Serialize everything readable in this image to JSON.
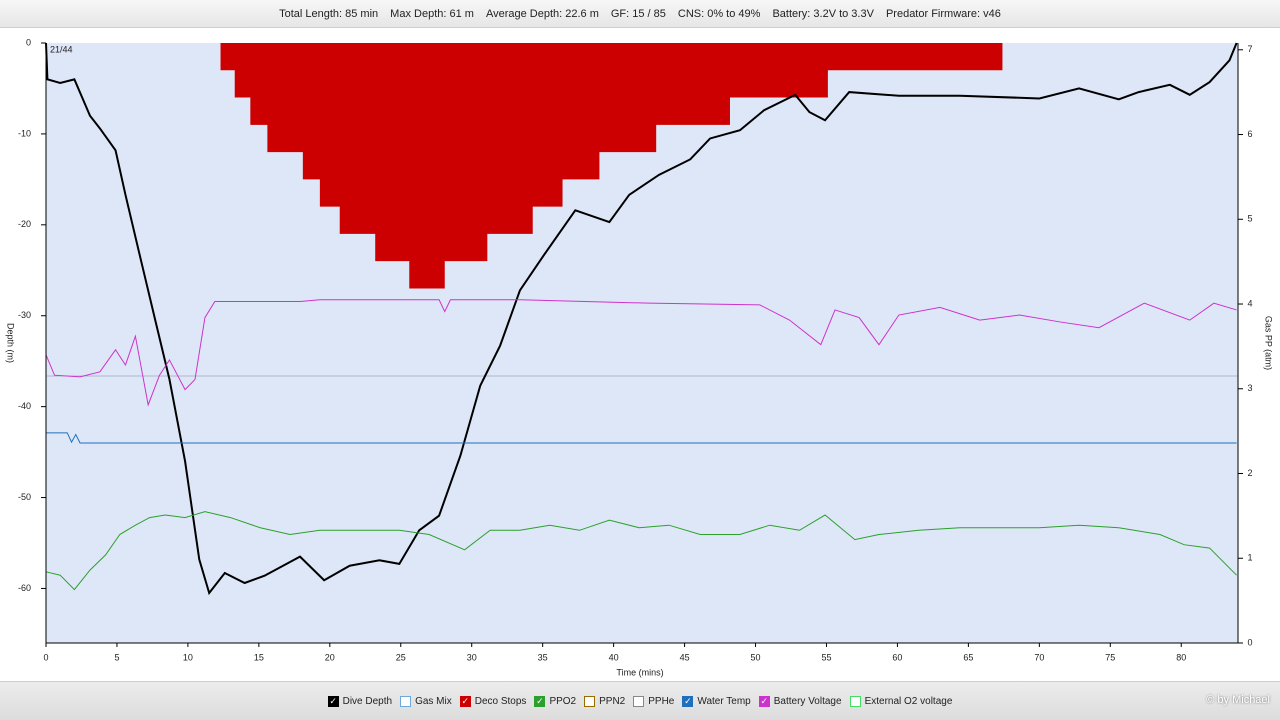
{
  "header": {
    "items": [
      "Total Length: 85 min",
      "Max Depth: 61 m",
      "Average Depth: 22.6 m",
      "GF: 15 / 85",
      "CNS: 0% to 49%",
      "Battery: 3.2V to 3.3V",
      "Predator Firmware: v46"
    ]
  },
  "chart_data": {
    "type": "line",
    "annotation": "21/44",
    "xlabel": "Time (mins)",
    "ylabel": "Depth (m)",
    "y2label": "Gas PP (atm)",
    "xlim": [
      0,
      84
    ],
    "xticks": [
      0,
      5,
      10,
      15,
      20,
      25,
      30,
      35,
      40,
      45,
      50,
      55,
      60,
      65,
      70,
      75,
      80
    ],
    "ylim": [
      -66,
      0
    ],
    "yticks": [
      0,
      -10,
      -20,
      -30,
      -40,
      -50,
      -60
    ],
    "y2lim": [
      0,
      7.08
    ],
    "y2ticks": [
      0,
      1,
      2,
      3,
      4,
      5,
      6,
      7
    ],
    "y2_reference": 3.15,
    "series": [
      {
        "name": "Dive Depth",
        "color": "#000000",
        "checked": true,
        "type": "line",
        "axis": "y",
        "x": [
          0,
          0.1,
          1,
          2,
          3.1,
          3.8,
          4.9,
          5.6,
          6.6,
          7.7,
          8.7,
          9.8,
          10.8,
          11.5,
          12.6,
          14,
          15.4,
          17.9,
          19.6,
          21.4,
          23.5,
          24.9,
          26.3,
          27.7,
          29.2,
          30.6,
          32,
          33.4,
          35.1,
          37.3,
          39.7,
          41.1,
          43.2,
          45.4,
          46.8,
          48.9,
          50.6,
          52.8,
          53.8,
          54.9,
          56.6,
          60.1,
          64.4,
          70,
          72.8,
          75.6,
          77,
          79.2,
          80.6,
          82,
          83.4,
          83.9
        ],
        "values": [
          0,
          -4,
          -4.4,
          -4,
          -8,
          -9.4,
          -11.8,
          -16.7,
          -23.3,
          -30.5,
          -37,
          -46,
          -56.8,
          -60.5,
          -58.3,
          -59.4,
          -58.6,
          -56.5,
          -59.1,
          -57.5,
          -56.9,
          -57.3,
          -53.6,
          -52,
          -45.4,
          -37.7,
          -33.3,
          -27.2,
          -23.3,
          -18.4,
          -19.7,
          -16.7,
          -14.5,
          -12.8,
          -10.5,
          -9.6,
          -7.4,
          -5.7,
          -7.6,
          -8.5,
          -5.4,
          -5.8,
          -5.8,
          -6.1,
          -5,
          -6.2,
          -5.4,
          -4.6,
          -5.7,
          -4.3,
          -1.9,
          0
        ]
      },
      {
        "name": "Gas Mix",
        "color": "#6fa8dc",
        "checked": false
      },
      {
        "name": "Deco Stops",
        "color": "#cc0000",
        "checked": true,
        "type": "area",
        "axis": "y",
        "x": [
          12.3,
          13.3,
          14.4,
          15.6,
          18.1,
          19.3,
          20.7,
          23.2,
          25.6,
          28.1,
          31.1,
          34.3,
          36.4,
          39,
          43,
          48.2,
          55.1,
          67.4
        ],
        "values": [
          -3,
          -6,
          -9,
          -12,
          -15,
          -18,
          -21,
          -24,
          -27,
          -24,
          -21,
          -18,
          -15,
          -12,
          -9,
          -6,
          -3,
          0
        ]
      },
      {
        "name": "PPO2",
        "color": "#2ca02c",
        "checked": true,
        "type": "line",
        "axis": "y2",
        "x": [
          0,
          1,
          2,
          3.1,
          4.2,
          5.2,
          6.3,
          7.3,
          8.4,
          9.8,
          11.2,
          13,
          15.1,
          17.2,
          19.3,
          21.4,
          24.9,
          27,
          29.5,
          31.3,
          33.4,
          35.5,
          37.6,
          39.7,
          41.8,
          43.9,
          46.1,
          48.9,
          51,
          53.1,
          54.9,
          57,
          58.7,
          61.5,
          64.4,
          67.2,
          70,
          72.8,
          75.6,
          78.5,
          80.2,
          82,
          83.9
        ],
        "values": [
          0.84,
          0.8,
          0.63,
          0.86,
          1.04,
          1.28,
          1.39,
          1.48,
          1.51,
          1.48,
          1.55,
          1.48,
          1.36,
          1.28,
          1.33,
          1.33,
          1.33,
          1.28,
          1.1,
          1.33,
          1.33,
          1.39,
          1.33,
          1.45,
          1.36,
          1.39,
          1.28,
          1.28,
          1.39,
          1.33,
          1.51,
          1.22,
          1.28,
          1.33,
          1.36,
          1.36,
          1.36,
          1.39,
          1.36,
          1.28,
          1.16,
          1.12,
          0.8
        ]
      },
      {
        "name": "PPN2",
        "color": "#9a6a00",
        "checked": false
      },
      {
        "name": "PPHe",
        "color": "#888888",
        "checked": false
      },
      {
        "name": "Water Temp",
        "color": "#1f6fbf",
        "checked": true,
        "type": "line",
        "axis": "y2",
        "x": [
          0,
          1.5,
          1.8,
          2.1,
          2.4,
          83.9
        ],
        "values": [
          2.48,
          2.48,
          2.37,
          2.46,
          2.36,
          2.36
        ]
      },
      {
        "name": "Battery Voltage",
        "color": "#cc33cc",
        "checked": true,
        "type": "line",
        "axis": "y2",
        "x": [
          0,
          0.6,
          2.4,
          3.8,
          4.9,
          5.6,
          6.3,
          7.2,
          8,
          8.7,
          9.8,
          10.5,
          11.2,
          11.9,
          17.9,
          19.3,
          27.7,
          28.1,
          28.5,
          33.4,
          42.5,
          50.3,
          52.4,
          54.6,
          55.6,
          57.3,
          58.7,
          60.1,
          63,
          65.8,
          68.6,
          71.4,
          74.2,
          77.4,
          80.6,
          82.3,
          83.9
        ],
        "values": [
          3.4,
          3.16,
          3.14,
          3.2,
          3.46,
          3.28,
          3.62,
          2.81,
          3.16,
          3.34,
          2.99,
          3.11,
          3.84,
          4.03,
          4.03,
          4.05,
          4.05,
          3.91,
          4.05,
          4.05,
          4.01,
          3.99,
          3.81,
          3.52,
          3.93,
          3.84,
          3.52,
          3.87,
          3.96,
          3.81,
          3.87,
          3.79,
          3.72,
          4.01,
          3.81,
          4.01,
          3.93
        ]
      },
      {
        "name": "External O2 voltage",
        "color": "#44dd66",
        "checked": false
      }
    ]
  },
  "footer": {
    "credit": "© by Michael"
  }
}
